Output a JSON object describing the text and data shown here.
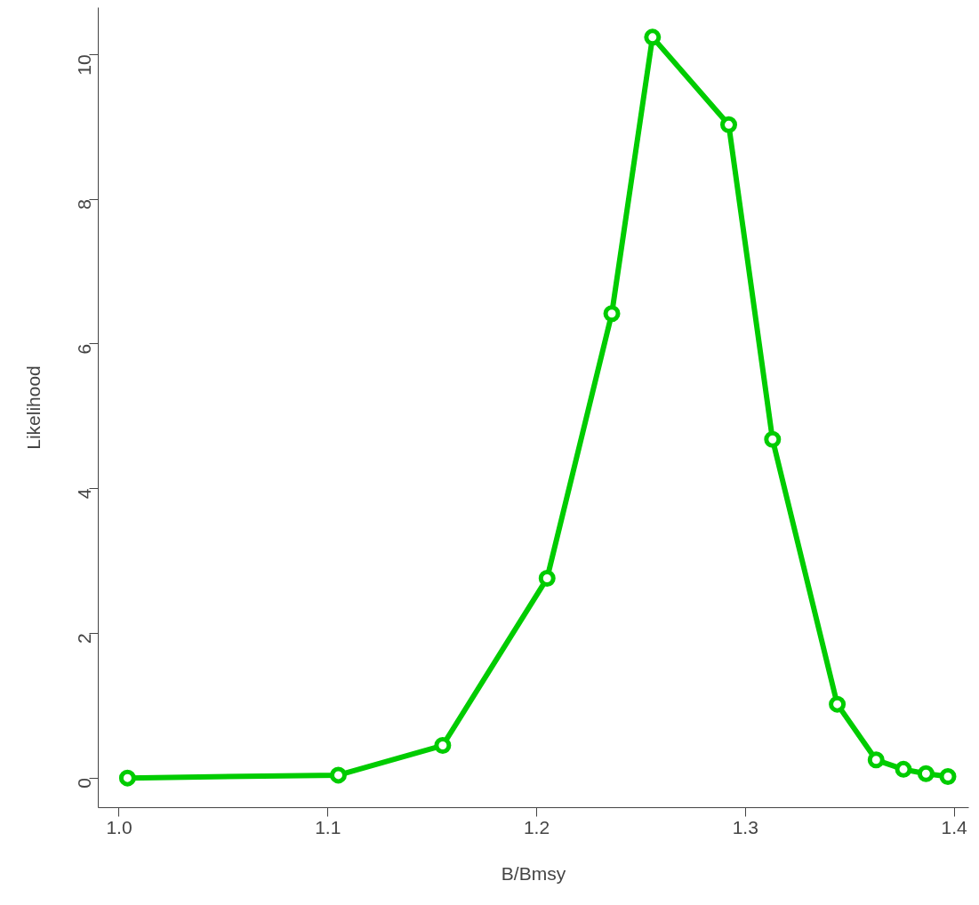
{
  "chart_data": {
    "type": "line",
    "xlabel": "B/Bmsy",
    "ylabel": "Likelihood",
    "x": [
      1.004,
      1.105,
      1.155,
      1.205,
      1.236,
      1.2555,
      1.292,
      1.313,
      1.344,
      1.3626,
      1.3757,
      1.3865,
      1.397
    ],
    "series": [
      {
        "color": "#00cc00",
        "values": [
          0,
          0.04,
          0.45,
          2.76,
          6.42,
          10.24,
          9.03,
          4.68,
          1.02,
          0.25,
          0.12,
          0.06,
          0.02
        ]
      }
    ],
    "xlim": [
      0.99,
      1.407
    ],
    "ylim": [
      -0.41,
      10.65
    ],
    "xticks": [
      {
        "value": 1.0,
        "label": "1.0"
      },
      1.1,
      1.2,
      1.3,
      1.4
    ],
    "yticks": [
      0,
      2,
      4,
      6,
      8,
      10
    ],
    "marker": "circle",
    "line_style": "solid",
    "grid": false
  }
}
